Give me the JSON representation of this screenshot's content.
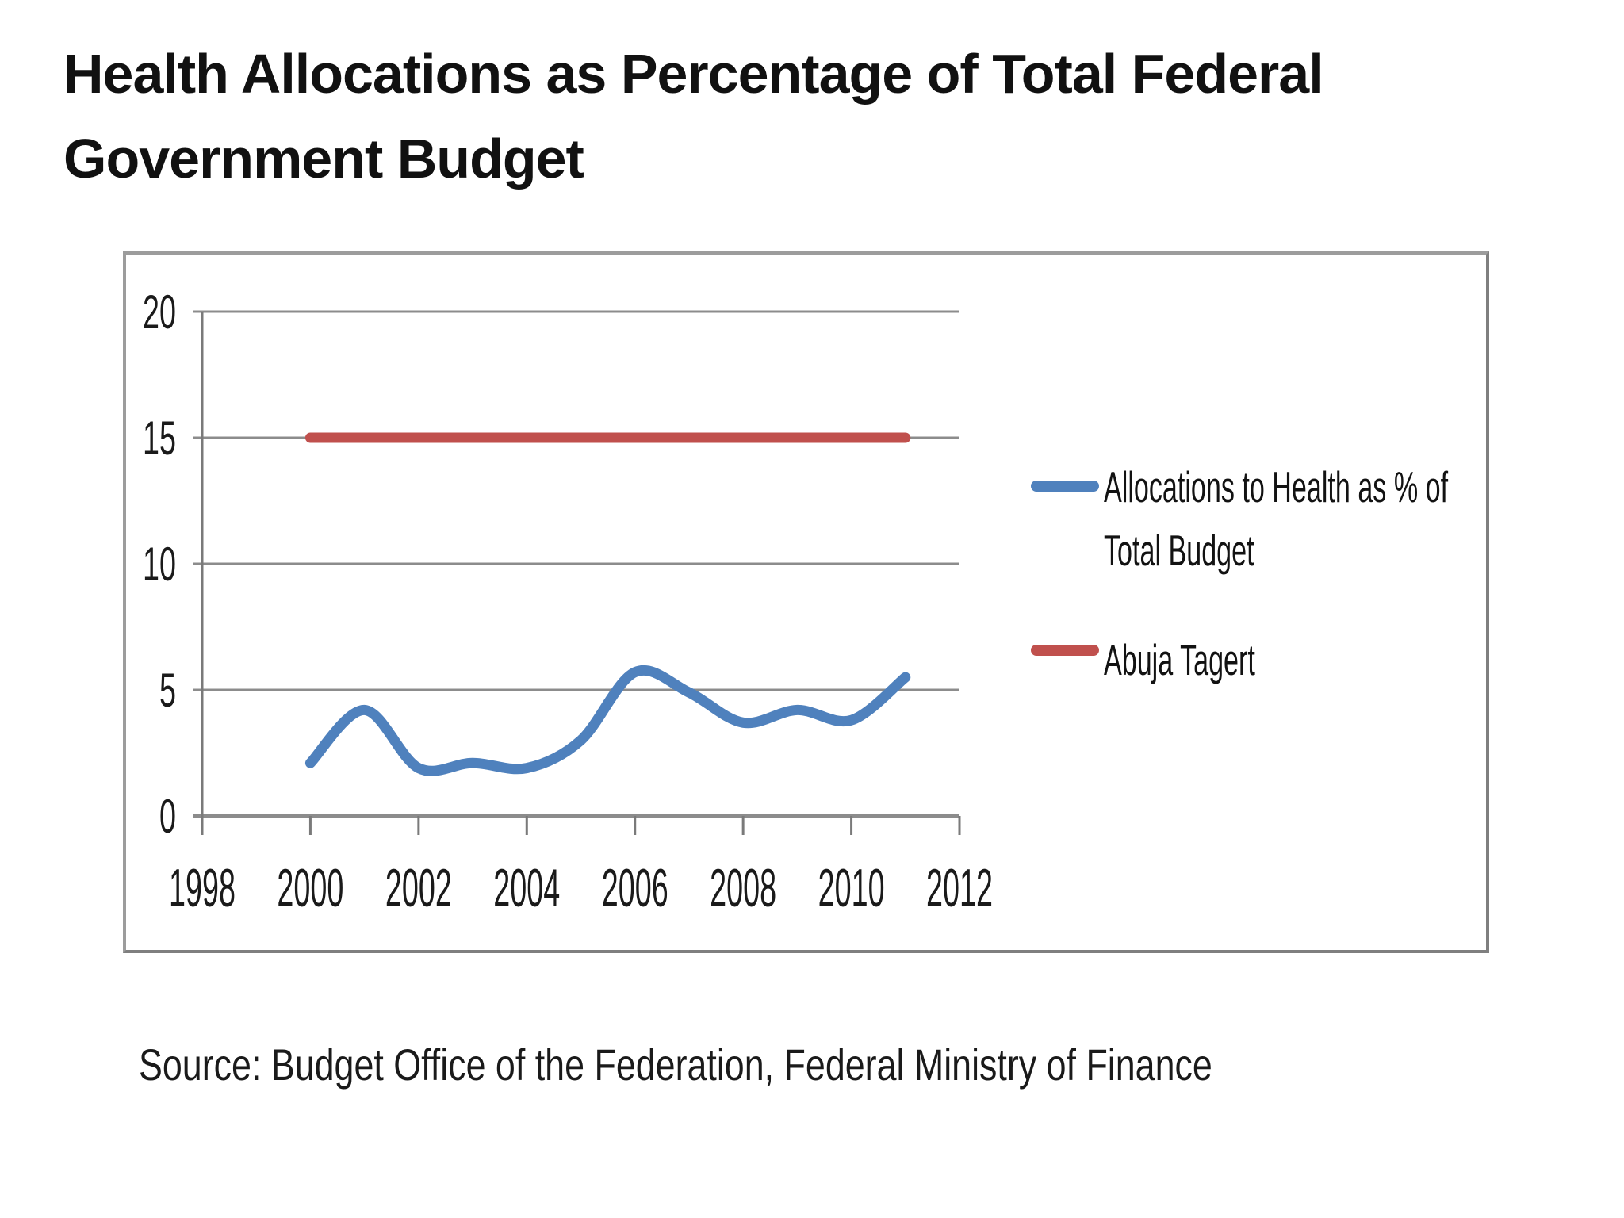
{
  "title": {
    "line1": "Health Allocations as Percentage of Total Federal",
    "line2": "Government Budget"
  },
  "source": {
    "text": "Source: Budget Office of the Federation, Federal Ministry of Finance"
  },
  "legend": {
    "items": [
      {
        "lines": [
          "Allocations to Health as % of",
          "Total Budget"
        ],
        "color": "#4F81BD"
      },
      {
        "lines": [
          "Abuja Tagert"
        ],
        "color": "#C0504D"
      }
    ]
  },
  "chart_data": {
    "type": "line",
    "title": "",
    "xlabel": "",
    "ylabel": "",
    "x": [
      2000,
      2001,
      2002,
      2003,
      2004,
      2005,
      2006,
      2007,
      2008,
      2009,
      2010,
      2011
    ],
    "series": [
      {
        "name": "Allocations to Health as % of Total Budget",
        "color": "#4F81BD",
        "smooth": true,
        "stroke_width": 13,
        "values": [
          2.1,
          4.2,
          1.9,
          2.1,
          1.9,
          3.0,
          5.7,
          4.9,
          3.7,
          4.2,
          3.8,
          5.5
        ]
      },
      {
        "name": "Abuja Tagert",
        "color": "#C0504D",
        "smooth": false,
        "stroke_width": 13,
        "values": [
          15,
          15,
          15,
          15,
          15,
          15,
          15,
          15,
          15,
          15,
          15,
          15
        ]
      }
    ],
    "xlim": [
      1998,
      2012
    ],
    "ylim": [
      0,
      20
    ],
    "x_ticks": [
      1998,
      2000,
      2002,
      2004,
      2006,
      2008,
      2010,
      2012
    ],
    "y_ticks": [
      0,
      5,
      10,
      15,
      20
    ],
    "grid": true,
    "gridline_color": "#8c8c8c",
    "axis_color": "#7a7a7a",
    "legend_position": "right"
  }
}
